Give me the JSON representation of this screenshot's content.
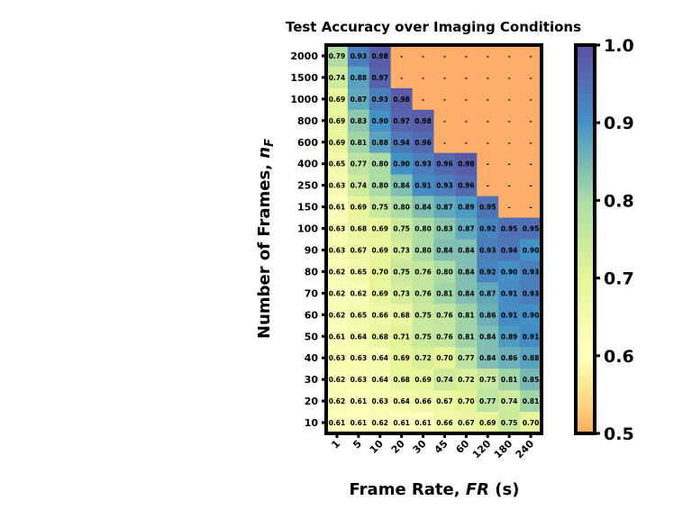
{
  "chart_data": {
    "type": "heatmap",
    "title": "Test Accuracy over Imaging Conditions",
    "xlabel_main": "Frame Rate, ",
    "xlabel_italic": "FR",
    "xlabel_unit": " (s)",
    "ylabel_main": "Number of Frames, ",
    "ylabel_italic": "n",
    "ylabel_sub": "F",
    "x_categories": [
      "1",
      "5",
      "10",
      "20",
      "30",
      "45",
      "60",
      "120",
      "180",
      "240"
    ],
    "y_categories": [
      "2000",
      "1500",
      "1000",
      "800",
      "600",
      "400",
      "250",
      "150",
      "100",
      "90",
      "80",
      "70",
      "60",
      "50",
      "40",
      "30",
      "20",
      "10"
    ],
    "missing_label": "-",
    "values": [
      [
        0.79,
        0.93,
        0.98,
        null,
        null,
        null,
        null,
        null,
        null,
        null
      ],
      [
        0.74,
        0.88,
        0.97,
        null,
        null,
        null,
        null,
        null,
        null,
        null
      ],
      [
        0.69,
        0.87,
        0.93,
        0.98,
        null,
        null,
        null,
        null,
        null,
        null
      ],
      [
        0.69,
        0.83,
        0.9,
        0.97,
        0.98,
        null,
        null,
        null,
        null,
        null
      ],
      [
        0.69,
        0.81,
        0.88,
        0.94,
        0.96,
        null,
        null,
        null,
        null,
        null
      ],
      [
        0.65,
        0.77,
        0.8,
        0.9,
        0.93,
        0.96,
        0.98,
        null,
        null,
        null
      ],
      [
        0.63,
        0.74,
        0.8,
        0.84,
        0.91,
        0.93,
        0.96,
        null,
        null,
        null
      ],
      [
        0.61,
        0.69,
        0.75,
        0.8,
        0.84,
        0.87,
        0.89,
        0.95,
        null,
        null
      ],
      [
        0.63,
        0.68,
        0.69,
        0.75,
        0.8,
        0.83,
        0.87,
        0.92,
        0.95,
        0.95
      ],
      [
        0.63,
        0.67,
        0.69,
        0.73,
        0.8,
        0.84,
        0.84,
        0.93,
        0.94,
        0.9
      ],
      [
        0.62,
        0.65,
        0.7,
        0.75,
        0.76,
        0.8,
        0.84,
        0.92,
        0.9,
        0.93
      ],
      [
        0.62,
        0.62,
        0.69,
        0.73,
        0.76,
        0.81,
        0.84,
        0.87,
        0.91,
        0.93
      ],
      [
        0.62,
        0.65,
        0.66,
        0.68,
        0.75,
        0.76,
        0.81,
        0.86,
        0.91,
        0.9
      ],
      [
        0.61,
        0.64,
        0.68,
        0.71,
        0.75,
        0.76,
        0.81,
        0.84,
        0.89,
        0.91
      ],
      [
        0.63,
        0.63,
        0.64,
        0.69,
        0.72,
        0.7,
        0.77,
        0.84,
        0.86,
        0.88
      ],
      [
        0.62,
        0.63,
        0.64,
        0.68,
        0.69,
        0.74,
        0.72,
        0.75,
        0.81,
        0.85
      ],
      [
        0.62,
        0.61,
        0.63,
        0.64,
        0.66,
        0.67,
        0.7,
        0.77,
        0.74,
        0.81
      ],
      [
        0.61,
        0.61,
        0.62,
        0.61,
        0.61,
        0.66,
        0.67,
        0.69,
        0.75,
        0.7
      ]
    ],
    "missing_color": "#FDAE6B",
    "colormap": "Spectral",
    "colorbar": {
      "vmin": 0.5,
      "vmax": 1.0,
      "ticks": [
        "0.5",
        "0.6",
        "0.7",
        "0.8",
        "0.9",
        "1.0"
      ]
    }
  }
}
